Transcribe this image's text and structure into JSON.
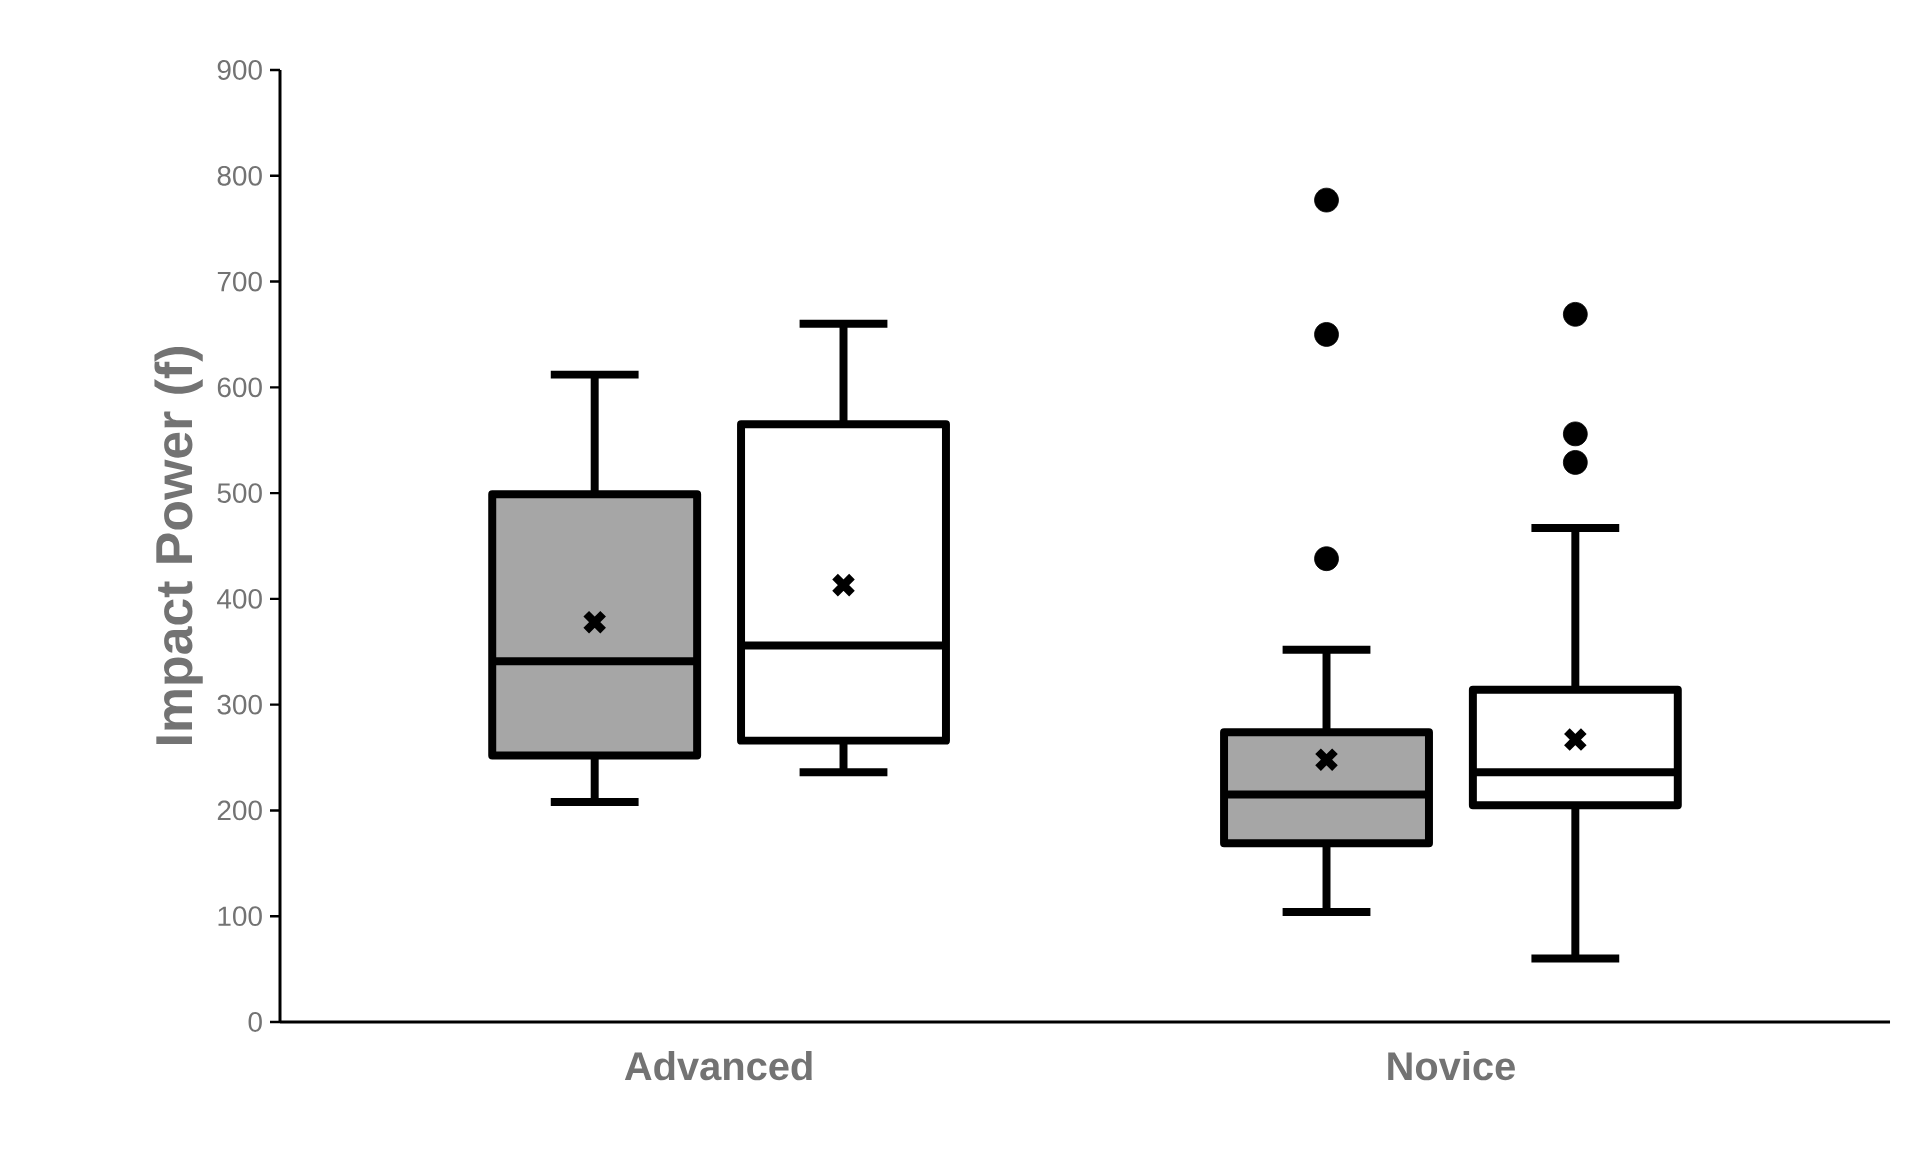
{
  "chart_data": {
    "type": "box",
    "ylabel": "Impact Power (f)",
    "categories": [
      "Advanced",
      "Novice"
    ],
    "ylim": [
      0,
      900
    ],
    "yticks": [
      0,
      100,
      200,
      300,
      400,
      500,
      600,
      700,
      800,
      900
    ],
    "series": [
      {
        "color": "#a6a6a6",
        "boxes": [
          {
            "low": 208,
            "q1": 252,
            "median": 341,
            "q3": 499,
            "high": 612,
            "mean": 378
          },
          {
            "low": 104,
            "q1": 169,
            "median": 215,
            "q3": 274,
            "high": 352,
            "mean": 248,
            "outliers": [
              777,
              650,
              438
            ]
          }
        ]
      },
      {
        "color": "#ffffff",
        "boxes": [
          {
            "low": 236,
            "q1": 266,
            "median": 356,
            "q3": 565,
            "high": 660,
            "mean": 413
          },
          {
            "low": 60,
            "q1": 205,
            "median": 236,
            "q3": 314,
            "high": 467,
            "mean": 267,
            "outliers": [
              669,
              556,
              529
            ]
          }
        ]
      }
    ]
  }
}
